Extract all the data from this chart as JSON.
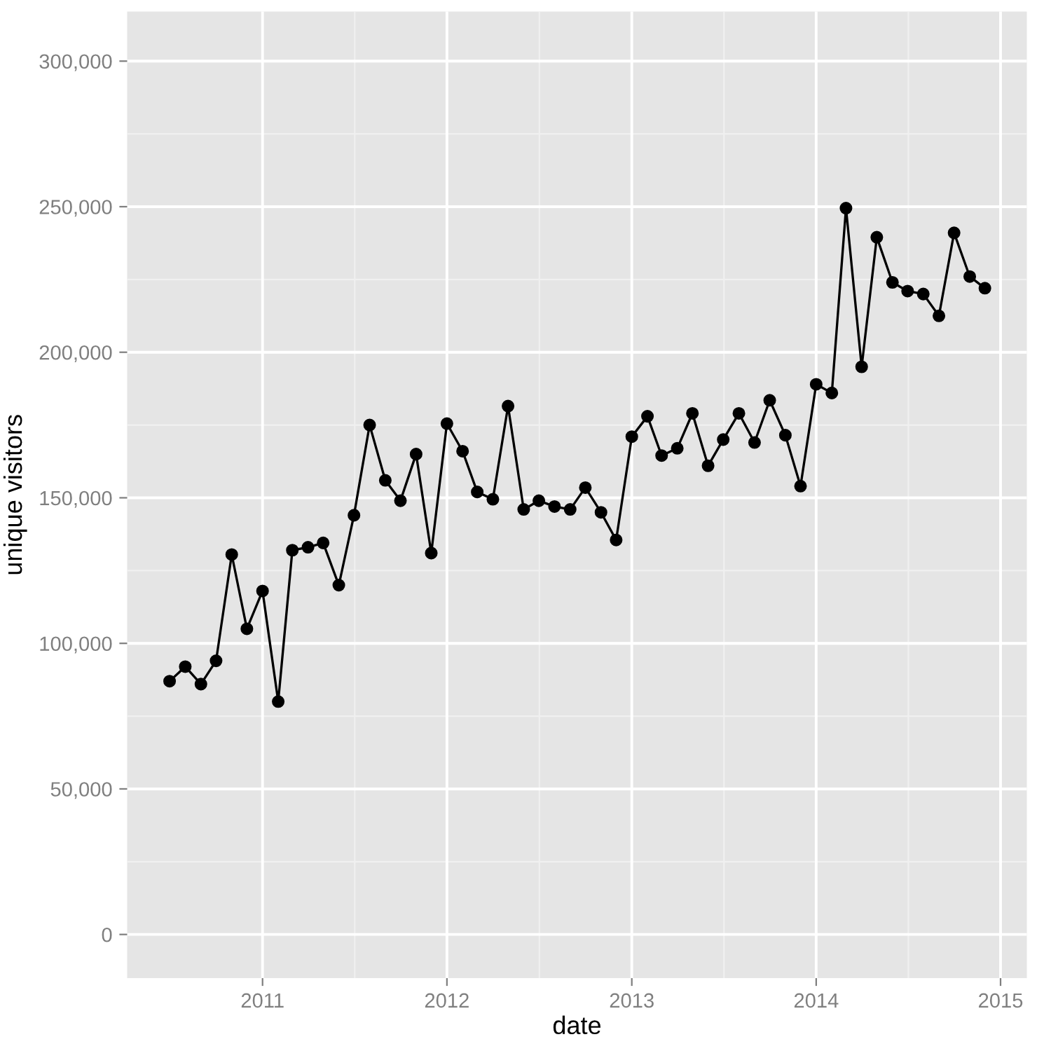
{
  "chart_data": {
    "type": "line",
    "xlabel": "date",
    "ylabel": "unique visitors",
    "x": [
      "2010-07",
      "2010-08",
      "2010-09",
      "2010-10",
      "2010-11",
      "2010-12",
      "2011-01",
      "2011-02",
      "2011-03",
      "2011-04",
      "2011-05",
      "2011-06",
      "2011-07",
      "2011-08",
      "2011-09",
      "2011-10",
      "2011-11",
      "2011-12",
      "2012-01",
      "2012-02",
      "2012-03",
      "2012-04",
      "2012-05",
      "2012-06",
      "2012-07",
      "2012-08",
      "2012-09",
      "2012-10",
      "2012-11",
      "2012-12",
      "2013-01",
      "2013-02",
      "2013-03",
      "2013-04",
      "2013-05",
      "2013-06",
      "2013-07",
      "2013-08",
      "2013-09",
      "2013-10",
      "2013-11",
      "2013-12",
      "2014-01",
      "2014-02",
      "2014-03",
      "2014-04",
      "2014-05",
      "2014-06",
      "2014-07",
      "2014-08",
      "2014-09",
      "2014-10",
      "2014-11",
      "2014-12"
    ],
    "series": [
      {
        "color": "#000000",
        "values": [
          87000,
          92000,
          86000,
          94000,
          130500,
          105000,
          118000,
          80000,
          132000,
          133000,
          134500,
          120000,
          144000,
          175000,
          156000,
          149000,
          165000,
          131000,
          175500,
          166000,
          152000,
          149500,
          181500,
          146000,
          149000,
          147000,
          146000,
          153500,
          145000,
          135500,
          171000,
          178000,
          164500,
          167000,
          179000,
          161000,
          170000,
          179000,
          169000,
          183500,
          171500,
          154000,
          189000,
          186000,
          249500,
          195000,
          239500,
          224000,
          221000,
          220000,
          212500,
          241000,
          226000,
          222000
        ]
      }
    ],
    "xlim": [
      "2010-04-08",
      "2015-02-22"
    ],
    "xticks": [
      "2011",
      "2012",
      "2013",
      "2014",
      "2015"
    ],
    "ylim": [
      -15000,
      317000
    ],
    "yticks": [
      {
        "value": 0,
        "label": "0"
      },
      {
        "value": 50000,
        "label": "50,000"
      },
      {
        "value": 100000,
        "label": "100,000"
      },
      {
        "value": 150000,
        "label": "150,000"
      },
      {
        "value": 200000,
        "label": "200,000"
      },
      {
        "value": 250000,
        "label": "250,000"
      },
      {
        "value": 300000,
        "label": "300,000"
      }
    ],
    "grid": true,
    "marker": "circle",
    "line_style": "solid",
    "legend": false
  }
}
